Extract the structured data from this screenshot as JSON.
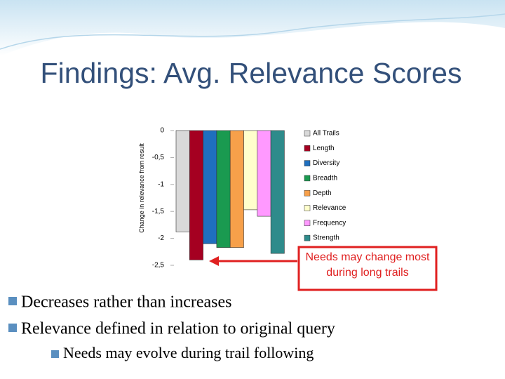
{
  "title": "Findings: Avg. Relevance Scores",
  "bullets": [
    "Decreases rather than increases",
    "Relevance defined in relation to original query"
  ],
  "sub_bullets": [
    "Needs may evolve during trail following"
  ],
  "chart_data": {
    "type": "bar",
    "y_label": "Change in relevance from result",
    "ylim": [
      -2.5,
      0
    ],
    "yticks": [
      0,
      {
        "value": -0.5,
        "label": "-0,5"
      },
      -1,
      {
        "value": -1.5,
        "label": "-1,5"
      },
      -2,
      {
        "value": -2.5,
        "label": "-2,5"
      }
    ],
    "legend": "right",
    "annotation": "Needs may change most during long trails",
    "series": [
      {
        "name": "All Trails",
        "color": "#d9d9d9",
        "values": [
          -1.88
        ]
      },
      {
        "name": "Length",
        "color": "#a50021",
        "values": [
          -2.4
        ]
      },
      {
        "name": "Diversity",
        "color": "#1f6fbf",
        "values": [
          -2.1
        ]
      },
      {
        "name": "Breadth",
        "color": "#1a9a50",
        "values": [
          -2.17
        ]
      },
      {
        "name": "Depth",
        "color": "#f7a04a",
        "values": [
          -2.17
        ]
      },
      {
        "name": "Relevance",
        "color": "#ffffcc",
        "values": [
          -1.47
        ]
      },
      {
        "name": "Frequency",
        "color": "#ff99ff",
        "values": [
          -1.59
        ]
      },
      {
        "name": "Strength",
        "color": "#2e8b8b",
        "values": [
          -2.28
        ]
      }
    ]
  }
}
